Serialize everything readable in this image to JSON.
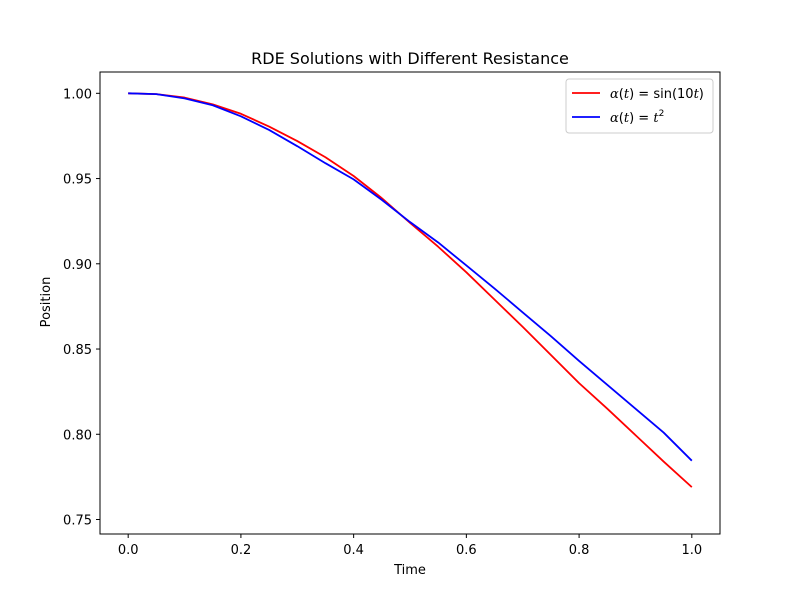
{
  "chart_data": {
    "type": "line",
    "title": "RDE Solutions with Different Resistance",
    "xlabel": "Time",
    "ylabel": "Position",
    "xlim": [
      -0.05,
      1.05
    ],
    "ylim": [
      0.7415,
      1.0125
    ],
    "xticks": [
      0.0,
      0.2,
      0.4,
      0.6,
      0.8,
      1.0
    ],
    "xtick_labels": [
      "0.0",
      "0.2",
      "0.4",
      "0.6",
      "0.8",
      "1.0"
    ],
    "yticks": [
      0.75,
      0.8,
      0.85,
      0.9,
      0.95,
      1.0
    ],
    "ytick_labels": [
      "0.75",
      "0.80",
      "0.85",
      "0.90",
      "0.95",
      "1.00"
    ],
    "grid": false,
    "legend_position": "top-right",
    "series": [
      {
        "name": "α(t) = sin(10t)",
        "legend_parts": [
          "α",
          "(",
          "t",
          ") = sin(10",
          "t",
          ")"
        ],
        "color": "#ff0000",
        "x": [
          0.0,
          0.05,
          0.1,
          0.15,
          0.2,
          0.25,
          0.3,
          0.35,
          0.4,
          0.45,
          0.5,
          0.55,
          0.6,
          0.65,
          0.7,
          0.75,
          0.8,
          0.85,
          0.9,
          0.95,
          1.0
        ],
        "y": [
          1.0,
          0.9995,
          0.9975,
          0.9935,
          0.988,
          0.9805,
          0.972,
          0.9625,
          0.9515,
          0.9385,
          0.924,
          0.91,
          0.895,
          0.879,
          0.863,
          0.8465,
          0.83,
          0.815,
          0.7995,
          0.784,
          0.769
        ]
      },
      {
        "name": "α(t) = t²",
        "legend_parts": [
          "α",
          "(",
          "t",
          ") = ",
          "t",
          "2"
        ],
        "color": "#0000ff",
        "x": [
          0.0,
          0.05,
          0.1,
          0.15,
          0.2,
          0.25,
          0.3,
          0.35,
          0.4,
          0.45,
          0.5,
          0.55,
          0.6,
          0.65,
          0.7,
          0.75,
          0.8,
          0.85,
          0.9,
          0.95,
          1.0
        ],
        "y": [
          1.0,
          0.9995,
          0.997,
          0.993,
          0.9865,
          0.9785,
          0.969,
          0.959,
          0.9495,
          0.9375,
          0.9245,
          0.9125,
          0.899,
          0.8855,
          0.8715,
          0.8575,
          0.843,
          0.829,
          0.815,
          0.801,
          0.7845
        ]
      }
    ]
  }
}
